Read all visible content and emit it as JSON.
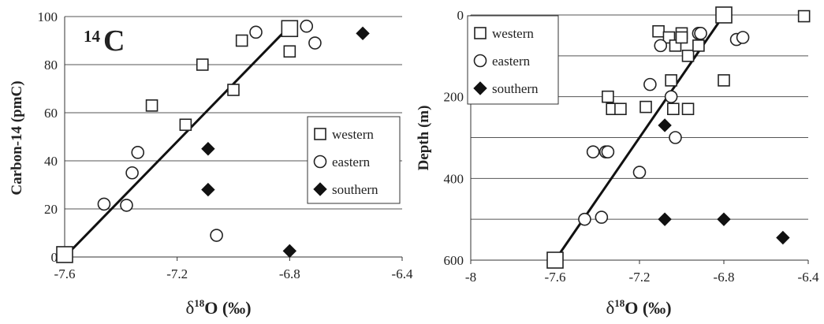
{
  "chart_data": [
    {
      "type": "scatter",
      "annotation": {
        "isotope_superscript": "14",
        "isotope_symbol": "C"
      },
      "xlabel": {
        "prefix": "δ",
        "superscript": "18",
        "main": "O (‰)"
      },
      "ylabel": "Carbon-14 (pmC)",
      "xlim": [
        -7.6,
        -6.4
      ],
      "ylim": [
        0,
        100
      ],
      "x_ticks": [
        "-7.6",
        "-7.2",
        "-6.8",
        "-6.4"
      ],
      "y_ticks": [
        "0",
        "20",
        "40",
        "60",
        "80",
        "100"
      ],
      "grid": "horizontal",
      "legend_position": "right",
      "series": [
        {
          "name": "western",
          "marker": "square",
          "points": [
            [
              -7.6,
              1
            ],
            [
              -7.29,
              63
            ],
            [
              -7.17,
              55
            ],
            [
              -7.11,
              80
            ],
            [
              -7.0,
              69.5
            ],
            [
              -6.97,
              90
            ],
            [
              -6.8,
              85.5
            ],
            [
              -6.8,
              95
            ]
          ]
        },
        {
          "name": "eastern",
          "marker": "circle",
          "points": [
            [
              -7.46,
              22
            ],
            [
              -7.38,
              21.5
            ],
            [
              -7.36,
              35
            ],
            [
              -7.34,
              43.5
            ],
            [
              -7.06,
              9
            ],
            [
              -6.92,
              93.5
            ],
            [
              -6.74,
              96
            ],
            [
              -6.71,
              89
            ]
          ]
        },
        {
          "name": "southern",
          "marker": "diamond",
          "points": [
            [
              -7.09,
              45
            ],
            [
              -7.09,
              28
            ],
            [
              -6.8,
              2.5
            ],
            [
              -6.54,
              93
            ]
          ]
        }
      ],
      "trendline": [
        [
          -7.6,
          0
        ],
        [
          -6.8,
          96
        ]
      ]
    },
    {
      "type": "scatter",
      "xlabel": {
        "prefix": "δ",
        "superscript": "18",
        "main": "O (‰)"
      },
      "ylabel": "Depth (m)",
      "xlim": [
        -8,
        -6.4
      ],
      "ylim": [
        0,
        600
      ],
      "y_inverted": true,
      "x_ticks": [
        "-8",
        "-7.6",
        "-7.2",
        "-6.8",
        "-6.4"
      ],
      "y_ticks": [
        "0",
        "200",
        "400",
        "600"
      ],
      "grid": "horizontal",
      "legend_position": "top-left",
      "series": [
        {
          "name": "western",
          "marker": "square",
          "points": [
            [
              -7.6,
              600
            ],
            [
              -7.35,
              200
            ],
            [
              -7.33,
              230
            ],
            [
              -7.29,
              230
            ],
            [
              -7.17,
              225
            ],
            [
              -7.11,
              40
            ],
            [
              -7.06,
              55
            ],
            [
              -7.05,
              160
            ],
            [
              -7.04,
              230
            ],
            [
              -7.03,
              75
            ],
            [
              -7.0,
              45
            ],
            [
              -7.0,
              55
            ],
            [
              -6.97,
              100
            ],
            [
              -6.97,
              230
            ],
            [
              -6.92,
              75
            ],
            [
              -6.8,
              160
            ],
            [
              -6.8,
              0
            ],
            [
              -6.42,
              3
            ]
          ]
        },
        {
          "name": "eastern",
          "marker": "circle",
          "points": [
            [
              -7.46,
              500
            ],
            [
              -7.38,
              495
            ],
            [
              -7.42,
              335
            ],
            [
              -7.36,
              335
            ],
            [
              -7.35,
              335
            ],
            [
              -7.2,
              385
            ],
            [
              -7.15,
              170
            ],
            [
              -7.1,
              75
            ],
            [
              -7.05,
              200
            ],
            [
              -7.03,
              300
            ],
            [
              -6.92,
              45
            ],
            [
              -6.91,
              45
            ],
            [
              -6.74,
              60
            ],
            [
              -6.71,
              55
            ]
          ]
        },
        {
          "name": "southern",
          "marker": "diamond",
          "points": [
            [
              -7.08,
              270
            ],
            [
              -7.08,
              500
            ],
            [
              -6.8,
              500
            ],
            [
              -6.52,
              545
            ]
          ]
        }
      ],
      "trendline": [
        [
          -7.6,
          600
        ],
        [
          -6.8,
          0
        ]
      ]
    }
  ]
}
